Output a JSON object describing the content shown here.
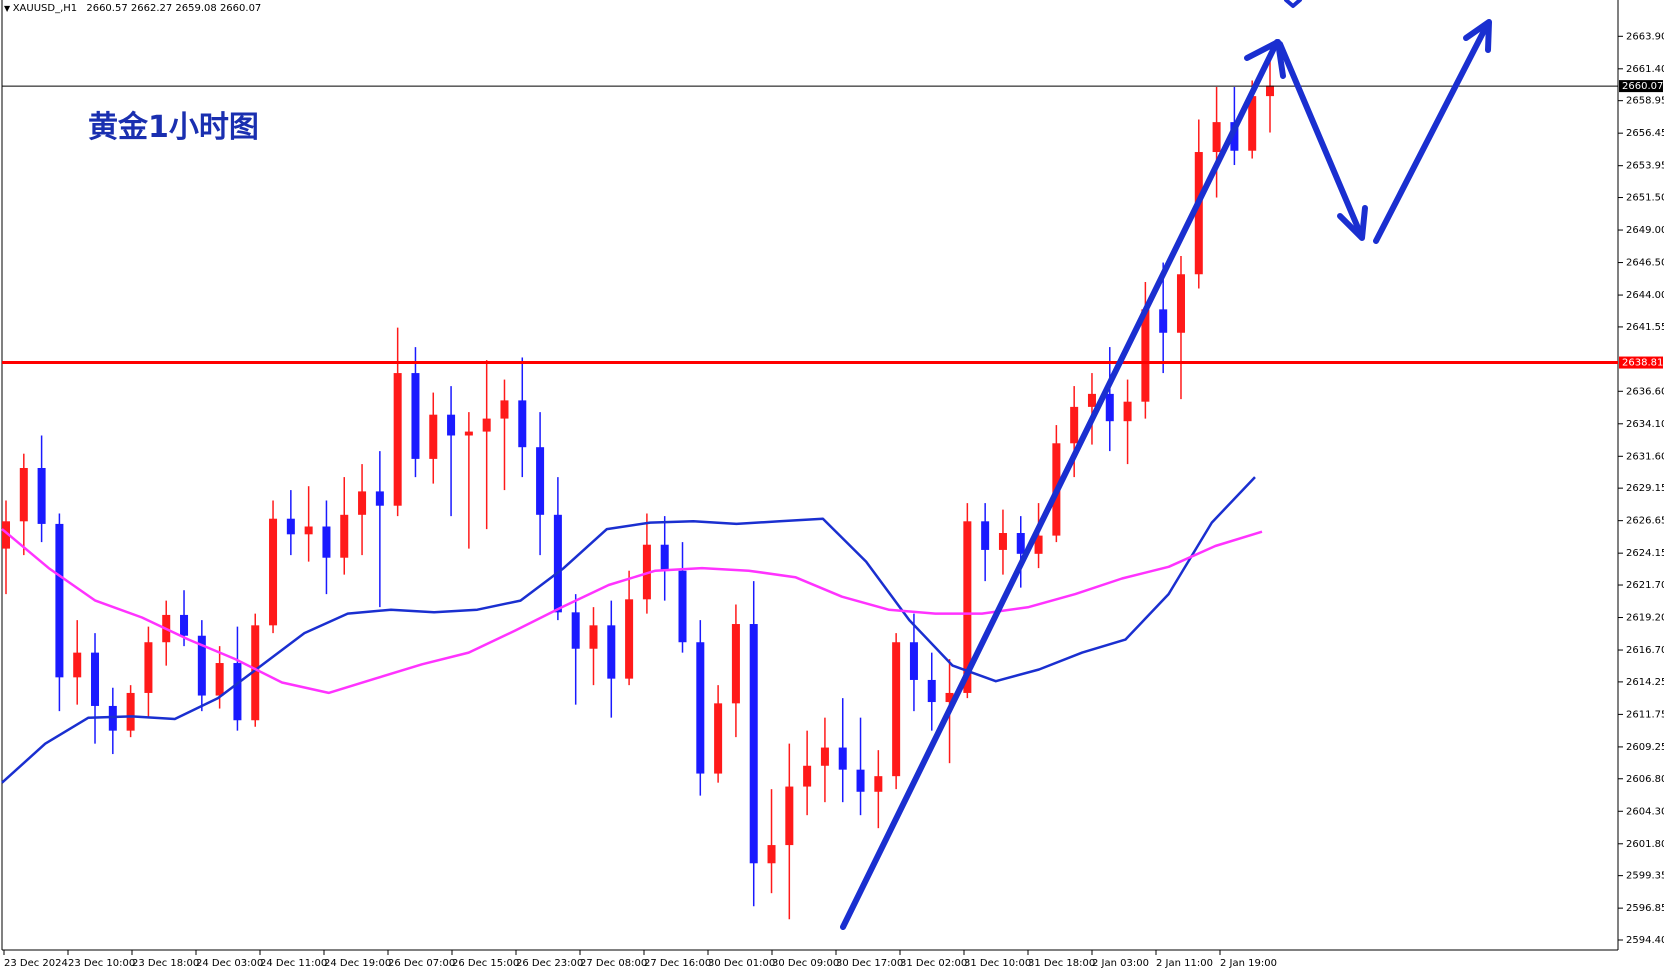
{
  "header": {
    "symbol": "XAUUSD_,H1",
    "ohlc": "2660.57 2662.27 2659.08 2660.07"
  },
  "annotation": {
    "title": "黄金1小时图"
  },
  "colors": {
    "bull_candle": "#ff1a1a",
    "bear_candle": "#1a1aff",
    "ma_fast": "#1a2fd0",
    "ma_slow": "#ff33ff",
    "resistance_line": "#ff0000",
    "price_line": "#000000",
    "trend_arrow": "#1a2fd0",
    "title": "#1a2fb0"
  },
  "chart_data": {
    "type": "candlestick",
    "title": "黄金1小时图",
    "symbol": "XAUUSD_,H1",
    "timeframe": "H1",
    "ylim": [
      2594.4,
      2665.0
    ],
    "y_ticks": [
      "2663.90",
      "2661.40",
      "2658.95",
      "2656.45",
      "2653.95",
      "2651.50",
      "2649.00",
      "2646.50",
      "2644.00",
      "2641.55",
      "2638.81",
      "2636.60",
      "2634.10",
      "2631.60",
      "2629.15",
      "2626.65",
      "2624.15",
      "2621.70",
      "2619.20",
      "2616.70",
      "2614.25",
      "2611.75",
      "2609.25",
      "2606.80",
      "2604.30",
      "2601.80",
      "2599.35",
      "2596.85",
      "2594.40"
    ],
    "x_ticks": [
      "23 Dec 2024",
      "23 Dec 10:00",
      "23 Dec 18:00",
      "24 Dec 03:00",
      "24 Dec 11:00",
      "24 Dec 19:00",
      "26 Dec 07:00",
      "26 Dec 15:00",
      "26 Dec 23:00",
      "27 Dec 08:00",
      "27 Dec 16:00",
      "30 Dec 01:00",
      "30 Dec 09:00",
      "30 Dec 17:00",
      "31 Dec 02:00",
      "31 Dec 10:00",
      "31 Dec 18:00",
      "2 Jan 03:00",
      "2 Jan 11:00",
      "2 Jan 19:00"
    ],
    "current_price": "2660.07",
    "resistance_price": "2638.81",
    "grid": false,
    "series": [
      {
        "name": "",
        "type": "moving-average",
        "values": [
          2606.5,
          2609.5,
          2611.5,
          2611.6,
          2611.4,
          2613,
          2615.5,
          2618,
          2619.5,
          2619.8,
          2619.6,
          2619.8,
          2620.5,
          2623,
          2626,
          2626.5,
          2626.6,
          2626.4,
          2626.6,
          2626.8,
          2623.5,
          2619,
          2615.5,
          2614.3,
          2615.2,
          2616.5,
          2617.5,
          2621,
          2626.5,
          2630
        ]
      },
      {
        "name": "",
        "type": "moving-average",
        "values": [
          2626.0,
          2623.0,
          2620.5,
          2619.2,
          2617.5,
          2616.0,
          2614.2,
          2613.4,
          2614.5,
          2615.6,
          2616.5,
          2618.2,
          2620.0,
          2621.7,
          2622.8,
          2623.0,
          2622.8,
          2622.3,
          2620.8,
          2619.8,
          2619.5,
          2619.5,
          2620.0,
          2621.0,
          2622.2,
          2623.1,
          2624.7,
          2625.8
        ]
      }
    ],
    "candles": [
      [
        2624.5,
        2628.2,
        2621.0,
        2626.6
      ],
      [
        2626.6,
        2631.8,
        2624.0,
        2630.7
      ],
      [
        2630.7,
        2633.2,
        2625.0,
        2626.4
      ],
      [
        2626.4,
        2627.2,
        2612.0,
        2614.6
      ],
      [
        2614.6,
        2619.0,
        2612.5,
        2616.5
      ],
      [
        2616.5,
        2618.0,
        2609.5,
        2612.4
      ],
      [
        2612.4,
        2613.8,
        2608.7,
        2610.5
      ],
      [
        2610.5,
        2614.0,
        2610.0,
        2613.4
      ],
      [
        2613.4,
        2618.5,
        2611.5,
        2617.3
      ],
      [
        2617.3,
        2620.5,
        2615.5,
        2619.4
      ],
      [
        2619.4,
        2621.3,
        2617.0,
        2617.8
      ],
      [
        2617.8,
        2619.0,
        2612.0,
        2613.2
      ],
      [
        2613.2,
        2617.0,
        2612.2,
        2615.7
      ],
      [
        2615.7,
        2618.5,
        2610.5,
        2611.3
      ],
      [
        2611.3,
        2619.5,
        2610.8,
        2618.6
      ],
      [
        2618.6,
        2628.2,
        2618.0,
        2626.8
      ],
      [
        2626.8,
        2629.0,
        2624.0,
        2625.6
      ],
      [
        2625.6,
        2629.3,
        2623.5,
        2626.2
      ],
      [
        2626.2,
        2628.2,
        2621.0,
        2623.8
      ],
      [
        2623.8,
        2630.0,
        2622.5,
        2627.1
      ],
      [
        2627.1,
        2631.0,
        2624.0,
        2628.9
      ],
      [
        2628.9,
        2632.0,
        2620.0,
        2627.8
      ],
      [
        2627.8,
        2641.5,
        2627.0,
        2638.0
      ],
      [
        2638.0,
        2640.0,
        2630.0,
        2631.4
      ],
      [
        2631.4,
        2636.5,
        2629.5,
        2634.8
      ],
      [
        2634.8,
        2637.0,
        2627.0,
        2633.2
      ],
      [
        2633.2,
        2635.0,
        2624.5,
        2633.5
      ],
      [
        2633.5,
        2639.0,
        2626.0,
        2634.5
      ],
      [
        2634.5,
        2637.5,
        2629.0,
        2635.9
      ],
      [
        2635.9,
        2639.2,
        2630.0,
        2632.3
      ],
      [
        2632.3,
        2635.0,
        2624.0,
        2627.1
      ],
      [
        2627.1,
        2630.0,
        2619.0,
        2619.6
      ],
      [
        2619.6,
        2621.0,
        2612.5,
        2616.8
      ],
      [
        2616.8,
        2620.0,
        2614.0,
        2618.6
      ],
      [
        2618.6,
        2620.5,
        2611.5,
        2614.5
      ],
      [
        2614.5,
        2622.8,
        2614.0,
        2620.6
      ],
      [
        2620.6,
        2627.2,
        2619.5,
        2624.8
      ],
      [
        2624.8,
        2627.0,
        2620.5,
        2622.8
      ],
      [
        2622.8,
        2625.0,
        2616.5,
        2617.3
      ],
      [
        2617.3,
        2619.0,
        2605.5,
        2607.2
      ],
      [
        2607.2,
        2614.0,
        2606.5,
        2612.6
      ],
      [
        2612.6,
        2620.2,
        2610.0,
        2618.7
      ],
      [
        2618.7,
        2622.0,
        2597.0,
        2600.3
      ],
      [
        2600.3,
        2606.0,
        2598.0,
        2601.7
      ],
      [
        2601.7,
        2609.5,
        2596.0,
        2606.2
      ],
      [
        2606.2,
        2610.5,
        2604.0,
        2607.8
      ],
      [
        2607.8,
        2611.5,
        2605.0,
        2609.2
      ],
      [
        2609.2,
        2613.0,
        2605.0,
        2607.5
      ],
      [
        2607.5,
        2611.5,
        2604.0,
        2605.8
      ],
      [
        2605.8,
        2609.0,
        2603.0,
        2607.0
      ],
      [
        2607.0,
        2618.0,
        2606.0,
        2617.3
      ],
      [
        2617.3,
        2619.5,
        2612.0,
        2614.4
      ],
      [
        2614.4,
        2616.5,
        2610.5,
        2612.7
      ],
      [
        2612.7,
        2616.0,
        2608.0,
        2613.4
      ],
      [
        2613.4,
        2628.0,
        2613.0,
        2626.6
      ],
      [
        2626.6,
        2628.0,
        2622.0,
        2624.4
      ],
      [
        2624.4,
        2627.5,
        2622.5,
        2625.7
      ],
      [
        2625.7,
        2627.0,
        2621.5,
        2624.1
      ],
      [
        2624.1,
        2628.0,
        2623.0,
        2625.5
      ],
      [
        2625.5,
        2634.0,
        2625.0,
        2632.6
      ],
      [
        2632.6,
        2637.0,
        2630.0,
        2635.4
      ],
      [
        2635.4,
        2638.0,
        2632.5,
        2636.4
      ],
      [
        2636.4,
        2640.0,
        2632.0,
        2634.3
      ],
      [
        2634.3,
        2637.5,
        2631.0,
        2635.8
      ],
      [
        2635.8,
        2645.0,
        2634.5,
        2642.9
      ],
      [
        2642.9,
        2646.5,
        2638.0,
        2641.1
      ],
      [
        2641.1,
        2647.0,
        2636.0,
        2645.6
      ],
      [
        2645.6,
        2657.5,
        2644.5,
        2655.0
      ],
      [
        2655.0,
        2660.0,
        2651.5,
        2657.3
      ],
      [
        2657.3,
        2660.0,
        2654.0,
        2655.1
      ],
      [
        2655.1,
        2660.5,
        2654.5,
        2659.3
      ],
      [
        2659.3,
        2662.3,
        2656.5,
        2660.1
      ]
    ]
  }
}
